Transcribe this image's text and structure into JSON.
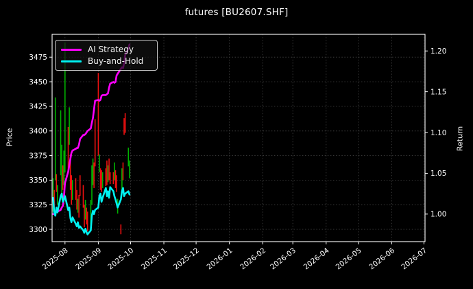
{
  "figure": {
    "title": "futures [BU2607.SHF]",
    "background_color": "#000000",
    "text_color": "#ffffff"
  },
  "chart_data": {
    "type": "candlestick+line",
    "title": "futures [BU2607.SHF]",
    "grid": {
      "show": true,
      "style": "dotted",
      "color": "#3d3d3d"
    },
    "x_axis": {
      "tick_labels": [
        "2025-08",
        "2025-09",
        "2025-10",
        "2025-11",
        "2025-12",
        "2026-01",
        "2026-02",
        "2026-03",
        "2026-04",
        "2026-05",
        "2026-06",
        "2026-07"
      ],
      "tick_day_offsets": [
        12,
        43,
        73,
        104,
        134,
        165,
        196,
        224,
        255,
        285,
        316,
        346
      ],
      "xlim_days": [
        0,
        347
      ],
      "label_rotation_deg": -38
    },
    "left_axis": {
      "label": "Price",
      "ticks": [
        3300,
        3325,
        3350,
        3375,
        3400,
        3425,
        3450,
        3475
      ],
      "ylim": [
        3287.5,
        3498.2
      ]
    },
    "right_axis": {
      "label": "Return",
      "tick_labels": [
        "1.00",
        "1.05",
        "1.10",
        "1.15",
        "1.20"
      ],
      "ticks": [
        1.0,
        1.05,
        1.1,
        1.15,
        1.2
      ],
      "ylim": [
        0.9662,
        1.2204
      ]
    },
    "legend": {
      "position": "upper-left",
      "entries": [
        {
          "label": "AI Strategy",
          "color": "#ff00ff"
        },
        {
          "label": "Buy-and-Hold",
          "color": "#00f2f2"
        }
      ]
    },
    "colors": {
      "up_candle": "#00b300",
      "down_candle": "#ef1010",
      "spine": "#ffffff"
    },
    "dates": [
      "2025-07-21",
      "2025-07-22",
      "2025-07-23",
      "2025-07-24",
      "2025-07-25",
      "2025-07-28",
      "2025-07-29",
      "2025-07-30",
      "2025-07-31",
      "2025-08-01",
      "2025-08-04",
      "2025-08-05",
      "2025-08-06",
      "2025-08-07",
      "2025-08-08",
      "2025-08-11",
      "2025-08-12",
      "2025-08-13",
      "2025-08-14",
      "2025-08-15",
      "2025-08-18",
      "2025-08-19",
      "2025-08-20",
      "2025-08-21",
      "2025-08-22",
      "2025-08-25",
      "2025-08-26",
      "2025-08-27",
      "2025-08-28",
      "2025-08-29",
      "2025-09-01",
      "2025-09-02",
      "2025-09-03",
      "2025-09-04",
      "2025-09-05",
      "2025-09-08",
      "2025-09-09",
      "2025-09-10",
      "2025-09-11",
      "2025-09-12",
      "2025-09-15",
      "2025-09-16",
      "2025-09-17",
      "2025-09-18",
      "2025-09-19",
      "2025-09-22",
      "2025-09-23",
      "2025-09-24",
      "2025-09-25",
      "2025-09-26",
      "2025-09-29",
      "2025-09-30"
    ],
    "day_offsets": [
      1,
      2,
      3,
      4,
      5,
      8,
      9,
      10,
      11,
      12,
      15,
      16,
      17,
      18,
      19,
      22,
      23,
      24,
      25,
      26,
      29,
      30,
      31,
      32,
      33,
      36,
      37,
      38,
      39,
      40,
      43,
      44,
      45,
      46,
      47,
      50,
      51,
      52,
      53,
      54,
      57,
      58,
      59,
      60,
      61,
      64,
      65,
      66,
      67,
      68,
      71,
      72
    ],
    "candles": {
      "low": [
        3318,
        3315,
        3350,
        3338,
        3325,
        3355,
        3330,
        3340,
        3345,
        3358,
        3360,
        3386,
        3340,
        3325,
        3330,
        3330,
        3320,
        3317,
        3312,
        3334,
        3322,
        3302,
        3310,
        3305,
        3298,
        3305,
        3325,
        3345,
        3342,
        3364,
        3375,
        3358,
        3340,
        3338,
        3342,
        3344,
        3345,
        3348,
        3350,
        3346,
        3346,
        3350,
        3342,
        3338,
        3316,
        3295,
        3340,
        3350,
        3396,
        3398,
        3364,
        3352
      ],
      "high": [
        3352,
        3340,
        3434,
        3356,
        3345,
        3421,
        3386,
        3365,
        3380,
        3490,
        3404,
        3424,
        3376,
        3355,
        3350,
        3352,
        3340,
        3331,
        3335,
        3355,
        3345,
        3325,
        3330,
        3322,
        3318,
        3330,
        3365,
        3372,
        3368,
        3412,
        3459,
        3376,
        3362,
        3360,
        3358,
        3362,
        3370,
        3365,
        3372,
        3358,
        3358,
        3368,
        3360,
        3355,
        3331,
        3305,
        3362,
        3368,
        3413,
        3418,
        3383,
        3370
      ],
      "direction": [
        "u",
        "d",
        "u",
        "d",
        "u",
        "u",
        "u",
        "d",
        "u",
        "u",
        "d",
        "u",
        "d",
        "d",
        "u",
        "d",
        "d",
        "u",
        "d",
        "d",
        "d",
        "d",
        "u",
        "d",
        "d",
        "u",
        "u",
        "u",
        "d",
        "d",
        "d",
        "u",
        "d",
        "d",
        "u",
        "d",
        "d",
        "u",
        "d",
        "d",
        "d",
        "u",
        "d",
        "d",
        "u",
        "d",
        "u",
        "d",
        "d",
        "d",
        "u",
        "u"
      ]
    },
    "series": [
      {
        "name": "AI Strategy",
        "axis": "return",
        "color": "#ff00ff",
        "values": [
          1.0,
          1.0,
          1.002,
          1.004,
          1.003,
          1.005,
          1.008,
          1.01,
          1.02,
          1.038,
          1.052,
          1.06,
          1.068,
          1.075,
          1.078,
          1.08,
          1.081,
          1.081,
          1.085,
          1.092,
          1.097,
          1.097,
          1.098,
          1.1,
          1.102,
          1.105,
          1.112,
          1.118,
          1.128,
          1.139,
          1.14,
          1.139,
          1.14,
          1.145,
          1.146,
          1.146,
          1.147,
          1.148,
          1.155,
          1.16,
          1.162,
          1.161,
          1.162,
          1.17,
          1.172,
          1.178,
          1.18,
          1.179,
          1.185,
          1.195,
          1.203,
          1.208
        ]
      },
      {
        "name": "Buy-and-Hold",
        "axis": "return",
        "color": "#00f2f2",
        "values": [
          1.02,
          1.002,
          0.998,
          1.008,
          1.002,
          1.022,
          1.025,
          1.015,
          1.018,
          1.022,
          1.005,
          1.008,
          0.995,
          0.99,
          0.996,
          0.988,
          0.985,
          0.99,
          0.983,
          0.985,
          0.98,
          0.977,
          0.982,
          0.978,
          0.975,
          0.98,
          0.998,
          1.004,
          1.0,
          1.005,
          1.008,
          1.022,
          1.025,
          1.015,
          1.02,
          1.032,
          1.022,
          1.028,
          1.02,
          1.033,
          1.028,
          1.022,
          1.018,
          1.013,
          1.008,
          1.018,
          1.028,
          1.032,
          1.022,
          1.025,
          1.028,
          1.024
        ]
      }
    ]
  }
}
